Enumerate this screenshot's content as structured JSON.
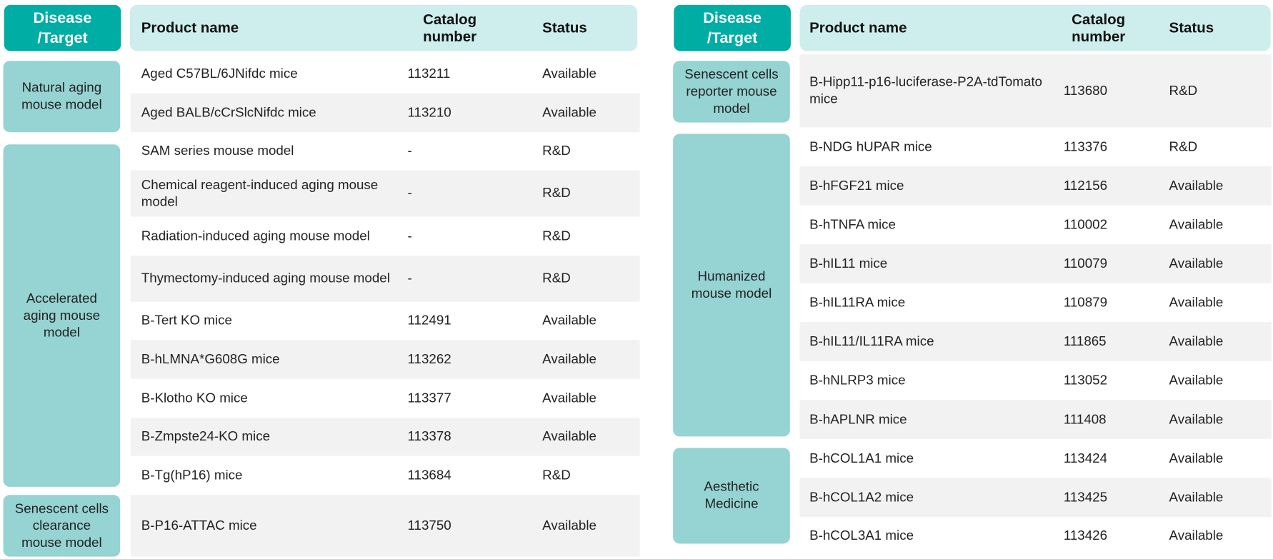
{
  "tables": [
    {
      "header": {
        "target": "Disease /Target",
        "product": "Product name",
        "catalog": "Catalog number",
        "status": "Status"
      },
      "groups": [
        {
          "label": "Natural aging mouse model",
          "rows": [
            [
              "Aged C57BL/6JNifdc mice",
              "113211",
              "Available"
            ],
            [
              "Aged BALB/cCrSlcNifdc mice",
              "113210",
              "Available"
            ]
          ]
        },
        {
          "label": "Accelerated aging mouse model",
          "rows": [
            [
              "SAM series mouse model",
              "-",
              "R&D"
            ],
            [
              "Chemical reagent-induced aging mouse model",
              "-",
              "R&D"
            ],
            [
              "Radiation-induced aging mouse model",
              "-",
              "R&D"
            ],
            [
              "Thymectomy-induced aging mouse model",
              "-",
              "R&D"
            ],
            [
              "B-Tert KO mice",
              "112491",
              "Available"
            ],
            [
              "B-hLMNA*G608G mice",
              "113262",
              "Available"
            ],
            [
              "B-Klotho KO mice",
              "113377",
              "Available"
            ],
            [
              "B-Zmpste24-KO mice",
              "113378",
              "Available"
            ],
            [
              "B-Tg(hP16) mice",
              "113684",
              "R&D"
            ]
          ]
        },
        {
          "label": "Senescent cells clearance mouse model",
          "rows": [
            [
              "B-P16-ATTAC mice",
              "113750",
              "Available"
            ]
          ]
        }
      ]
    },
    {
      "header": {
        "target": "Disease /Target",
        "product": "Product name",
        "catalog": "Catalog number",
        "status": "Status"
      },
      "groups": [
        {
          "label": "Senescent cells reporter mouse model",
          "rows": [
            [
              "B-Hipp11-p16-luciferase-P2A-tdTomato mice",
              "113680",
              "R&D"
            ]
          ]
        },
        {
          "label": "Humanized mouse model",
          "rows": [
            [
              "B-NDG hUPAR mice",
              "113376",
              "R&D"
            ],
            [
              "B-hFGF21 mice",
              "112156",
              "Available"
            ],
            [
              "B-hTNFA mice",
              "110002",
              "Available"
            ],
            [
              "B-hIL11 mice",
              "110079",
              "Available"
            ],
            [
              "B-hIL11RA mice",
              "110879",
              "Available"
            ],
            [
              "B-hIL11/IL11RA mice",
              "111865",
              "Available"
            ],
            [
              "B-hNLRP3 mice",
              "113052",
              "Available"
            ],
            [
              "B-hAPLNR mice",
              "111408",
              "Available"
            ]
          ]
        },
        {
          "label": "Aesthetic Medicine",
          "rows": [
            [
              "B-hCOL1A1 mice",
              "113424",
              "Available"
            ],
            [
              "B-hCOL1A2 mice",
              "113425",
              "Available"
            ],
            [
              "B-hCOL3A1 mice",
              "113426",
              "Available"
            ]
          ]
        }
      ]
    }
  ]
}
